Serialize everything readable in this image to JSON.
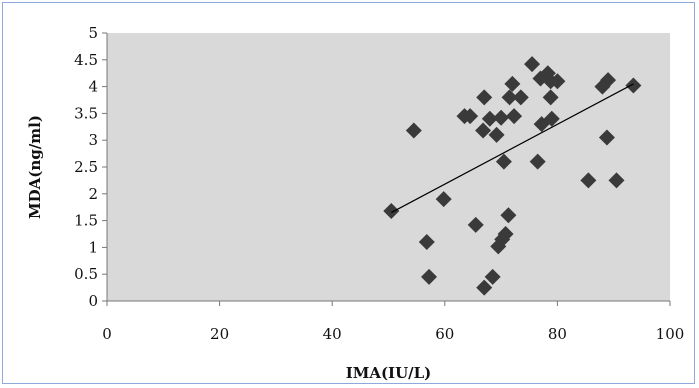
{
  "chart_data": {
    "type": "scatter",
    "title": "",
    "xlabel": "IMA(IU/L)",
    "ylabel": "MDA(ng/ml)",
    "xlim": [
      0,
      100
    ],
    "ylim": [
      0,
      5
    ],
    "x_ticks": [
      "0",
      "20",
      "40",
      "60",
      "80",
      "100"
    ],
    "y_ticks": [
      "0",
      "0.5",
      "1",
      "1.5",
      "2",
      "2.5",
      "3",
      "3.5",
      "4",
      "4.5",
      "5"
    ],
    "grid": false,
    "legend": "none",
    "series": [
      {
        "marker": "diamond",
        "color": "#3a3a3a",
        "points": [
          {
            "x": 50.5,
            "y": 1.68
          },
          {
            "x": 54.5,
            "y": 3.18
          },
          {
            "x": 56.8,
            "y": 1.1
          },
          {
            "x": 57.2,
            "y": 0.45
          },
          {
            "x": 59.8,
            "y": 1.9
          },
          {
            "x": 63.5,
            "y": 3.45
          },
          {
            "x": 64.5,
            "y": 3.45
          },
          {
            "x": 65.5,
            "y": 1.42
          },
          {
            "x": 66.8,
            "y": 3.18
          },
          {
            "x": 67.0,
            "y": 3.8
          },
          {
            "x": 67.0,
            "y": 0.25
          },
          {
            "x": 68.0,
            "y": 3.4
          },
          {
            "x": 68.5,
            "y": 0.45
          },
          {
            "x": 69.2,
            "y": 3.1
          },
          {
            "x": 69.5,
            "y": 1.02
          },
          {
            "x": 70.0,
            "y": 3.42
          },
          {
            "x": 70.2,
            "y": 1.15
          },
          {
            "x": 70.5,
            "y": 2.6
          },
          {
            "x": 70.8,
            "y": 1.25
          },
          {
            "x": 71.3,
            "y": 1.6
          },
          {
            "x": 71.5,
            "y": 3.8
          },
          {
            "x": 72.0,
            "y": 4.05
          },
          {
            "x": 72.3,
            "y": 3.45
          },
          {
            "x": 73.5,
            "y": 3.8
          },
          {
            "x": 75.5,
            "y": 4.42
          },
          {
            "x": 76.5,
            "y": 2.6
          },
          {
            "x": 77.0,
            "y": 4.15
          },
          {
            "x": 77.2,
            "y": 3.3
          },
          {
            "x": 78.3,
            "y": 4.25
          },
          {
            "x": 78.8,
            "y": 4.1
          },
          {
            "x": 78.8,
            "y": 3.8
          },
          {
            "x": 79.0,
            "y": 3.4
          },
          {
            "x": 80.0,
            "y": 4.1
          },
          {
            "x": 85.5,
            "y": 2.25
          },
          {
            "x": 88.0,
            "y": 4.0
          },
          {
            "x": 88.8,
            "y": 3.05
          },
          {
            "x": 89.0,
            "y": 4.12
          },
          {
            "x": 90.5,
            "y": 2.25
          },
          {
            "x": 93.5,
            "y": 4.02
          }
        ]
      }
    ],
    "trendline": {
      "type": "linear",
      "x_start": 50.5,
      "x_end": 93.5,
      "y_start": 1.65,
      "y_end": 4.05
    }
  }
}
